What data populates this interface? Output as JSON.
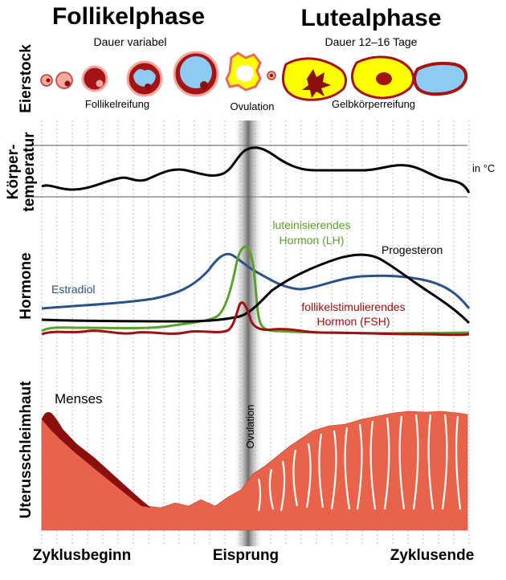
{
  "phases": {
    "follicular": {
      "title": "Follikelphase",
      "duration": "Dauer variabel"
    },
    "luteal": {
      "title": "Lutealphase",
      "duration": "Dauer 12–16 Tage"
    }
  },
  "ovary": {
    "row_label": "Eierstock",
    "stage_labels": {
      "maturation": "Follikelreifung",
      "ovulation": "Ovulation",
      "corpus_luteum": "Gelbkörperreifung"
    }
  },
  "temperature": {
    "row_label_1": "Körper-",
    "row_label_2": "temperatur",
    "unit": "in °C"
  },
  "hormones": {
    "row_label": "Hormone",
    "estradiol": "Estradiol",
    "lh_1": "luteinisierendes",
    "lh_2": "Hormon (LH)",
    "progesterone": "Progesteron",
    "fsh_1": "follikelstimulierendes",
    "fsh_2": "Hormon (FSH)",
    "colors": {
      "estradiol": "#2a5289",
      "lh": "#5aa02c",
      "progesterone": "#000000",
      "fsh": "#a01010"
    }
  },
  "endometrium": {
    "row_label": "Uterusschleimhaut",
    "menses": "Menses",
    "ovulation_band": "Ovulation",
    "color": "#e8634a"
  },
  "timeline": {
    "start": "Zyklusbeginn",
    "middle": "Eisprung",
    "end": "Zyklusende"
  }
}
